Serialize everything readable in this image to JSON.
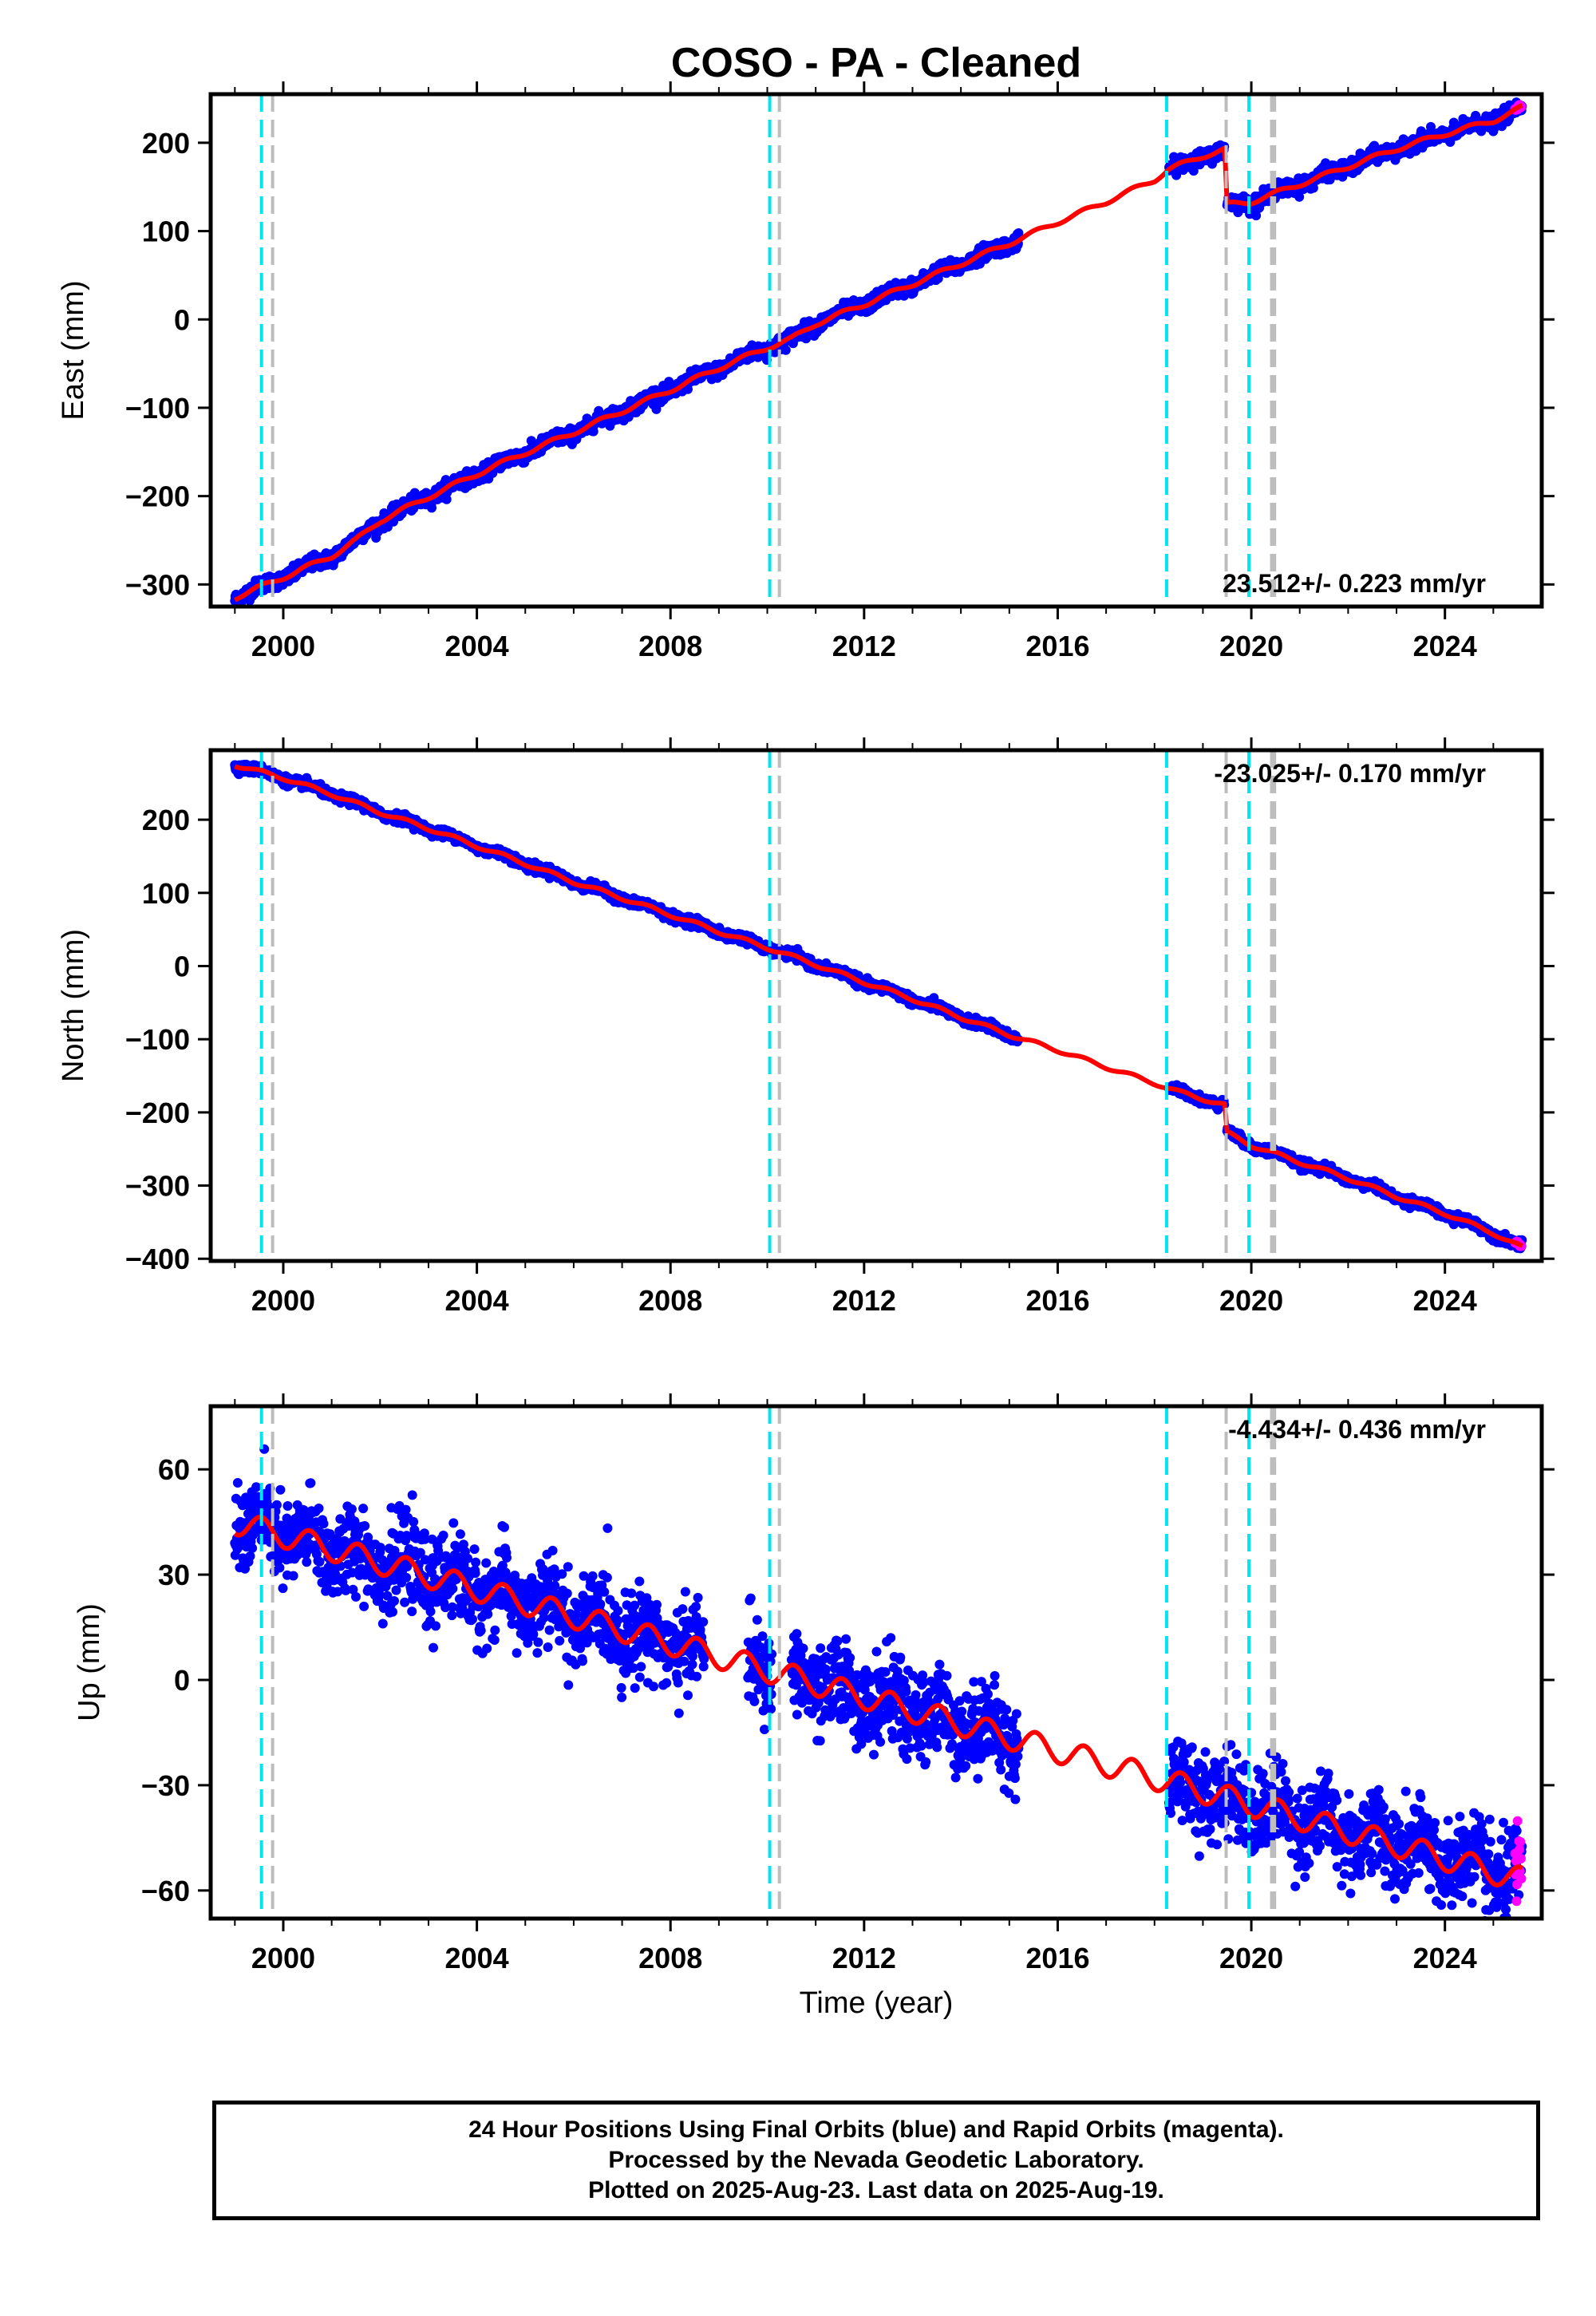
{
  "title": "COSO  - PA - Cleaned",
  "xlabel": "Time (year)",
  "footer": {
    "line1": "24 Hour Positions Using Final Orbits (blue) and Rapid Orbits (magenta).",
    "line2": "Processed by the Nevada Geodetic Laboratory.",
    "line3": "Plotted on 2025-Aug-23. Last data on 2025-Aug-19."
  },
  "colors": {
    "final_orbits": "#0000ff",
    "rapid_orbits": "#ff00ff",
    "model": "#ff0000",
    "event_cyan": "#00e5ee",
    "event_gray": "#bdbdbd"
  },
  "events": {
    "cyan": [
      1999.55,
      2010.05,
      2018.25,
      2019.95
    ],
    "gray": [
      1999.78,
      2010.25,
      2019.48,
      2020.42,
      2020.48
    ]
  },
  "chart_data": [
    {
      "type": "scatter",
      "name": "east",
      "ylabel": "East (mm)",
      "xlim": [
        1998.5,
        2026.0
      ],
      "ylim": [
        -325,
        255
      ],
      "xticks": [
        2000,
        2004,
        2008,
        2012,
        2016,
        2020,
        2024
      ],
      "yticks": [
        200,
        100,
        0,
        -100,
        -200,
        -300
      ],
      "xtick_labels": [
        "2000",
        "2004",
        "2008",
        "2012",
        "2016",
        "2020",
        "2024"
      ],
      "ytick_labels": [
        "200",
        "100",
        "0",
        "−100",
        "−200",
        "−300"
      ],
      "rate_label": "23.512+/- 0.223 mm/yr",
      "rate_position": "bottom-right",
      "series": [
        {
          "name": "model",
          "x": [
            1999.0,
            2000.0,
            2001.0,
            2001.5,
            2002.0,
            2003.0,
            2004.0,
            2005.0,
            2006.0,
            2007.0,
            2008.0,
            2009.0,
            2010.0,
            2010.5,
            2011.0,
            2012.0,
            2013.0,
            2014.0,
            2015.0,
            2016.0,
            2017.0,
            2018.0,
            2018.3,
            2019.0,
            2019.45,
            2019.5,
            2020.0,
            2021.0,
            2022.0,
            2023.0,
            2024.0,
            2025.0,
            2025.6
          ],
          "y": [
            -315,
            -292,
            -268,
            -250,
            -228,
            -201,
            -175,
            -151,
            -128,
            -104,
            -80,
            -55,
            -32,
            -22,
            -5,
            17,
            40,
            63,
            86,
            110,
            133,
            158,
            170,
            185,
            192,
            130,
            133,
            153,
            173,
            193,
            210,
            225,
            240
          ]
        }
      ],
      "observations": [
        {
          "segment": [
            1999.0,
            2015.2
          ],
          "trend_rate": 23.5,
          "scatter": 4
        },
        {
          "segment": [
            2018.3,
            2019.45
          ],
          "scatter": 4
        },
        {
          "segment": [
            2019.5,
            2025.6
          ],
          "scatter": 4
        }
      ]
    },
    {
      "type": "scatter",
      "name": "north",
      "ylabel": "North (mm)",
      "xlim": [
        1998.5,
        2026.0
      ],
      "ylim": [
        -403,
        295
      ],
      "xticks": [
        2000,
        2004,
        2008,
        2012,
        2016,
        2020,
        2024
      ],
      "yticks": [
        200,
        100,
        0,
        -100,
        -200,
        -300,
        -400
      ],
      "xtick_labels": [
        "2000",
        "2004",
        "2008",
        "2012",
        "2016",
        "2020",
        "2024"
      ],
      "ytick_labels": [
        "200",
        "100",
        "0",
        "−100",
        "−200",
        "−300",
        "−400"
      ],
      "rate_label": "-23.025+/- 0.170 mm/yr",
      "rate_position": "top-right",
      "series": [
        {
          "name": "model",
          "x": [
            1999.0,
            2000.0,
            2001.0,
            2002.0,
            2003.0,
            2004.0,
            2005.0,
            2006.0,
            2007.0,
            2008.0,
            2009.0,
            2010.0,
            2011.0,
            2012.0,
            2013.0,
            2014.0,
            2015.0,
            2016.0,
            2017.0,
            2018.0,
            2018.5,
            2019.45,
            2019.5,
            2020.0,
            2021.0,
            2022.0,
            2023.0,
            2024.0,
            2025.0,
            2025.6
          ],
          "y": [
            275,
            257,
            235,
            210,
            188,
            164,
            140,
            115,
            93,
            70,
            47,
            25,
            2,
            -22,
            -45,
            -70,
            -94,
            -115,
            -138,
            -160,
            -172,
            -190,
            -228,
            -245,
            -268,
            -290,
            -315,
            -338,
            -365,
            -385
          ]
        }
      ],
      "observations": [
        {
          "segment": [
            1999.0,
            2015.2
          ],
          "scatter": 3
        },
        {
          "segment": [
            2018.3,
            2019.45
          ],
          "scatter": 3
        },
        {
          "segment": [
            2019.5,
            2025.6
          ],
          "scatter": 3
        }
      ]
    },
    {
      "type": "scatter",
      "name": "up",
      "ylabel": "Up (mm)",
      "xlim": [
        1998.5,
        2026.0
      ],
      "ylim": [
        -68,
        78
      ],
      "xticks": [
        2000,
        2004,
        2008,
        2012,
        2016,
        2020,
        2024
      ],
      "yticks": [
        60,
        30,
        0,
        -30,
        -60
      ],
      "xtick_labels": [
        "2000",
        "2004",
        "2008",
        "2012",
        "2016",
        "2020",
        "2024"
      ],
      "ytick_labels": [
        "60",
        "30",
        "0",
        "−30",
        "−60"
      ],
      "rate_label": "-4.434+/- 0.436 mm/yr",
      "rate_position": "top-right",
      "series": [
        {
          "name": "model",
          "x": [
            1999.0,
            2025.6
          ],
          "y": [
            45,
            -57
          ],
          "seasonal_amplitude": 3.5
        }
      ],
      "observations": [
        {
          "segment": [
            1999.0,
            2008.7
          ],
          "scatter": 6
        },
        {
          "segment": [
            2009.6,
            2010.1
          ],
          "scatter": 6
        },
        {
          "segment": [
            2010.5,
            2015.2
          ],
          "scatter": 6
        },
        {
          "segment": [
            2018.3,
            2025.6
          ],
          "scatter": 6
        }
      ]
    }
  ]
}
